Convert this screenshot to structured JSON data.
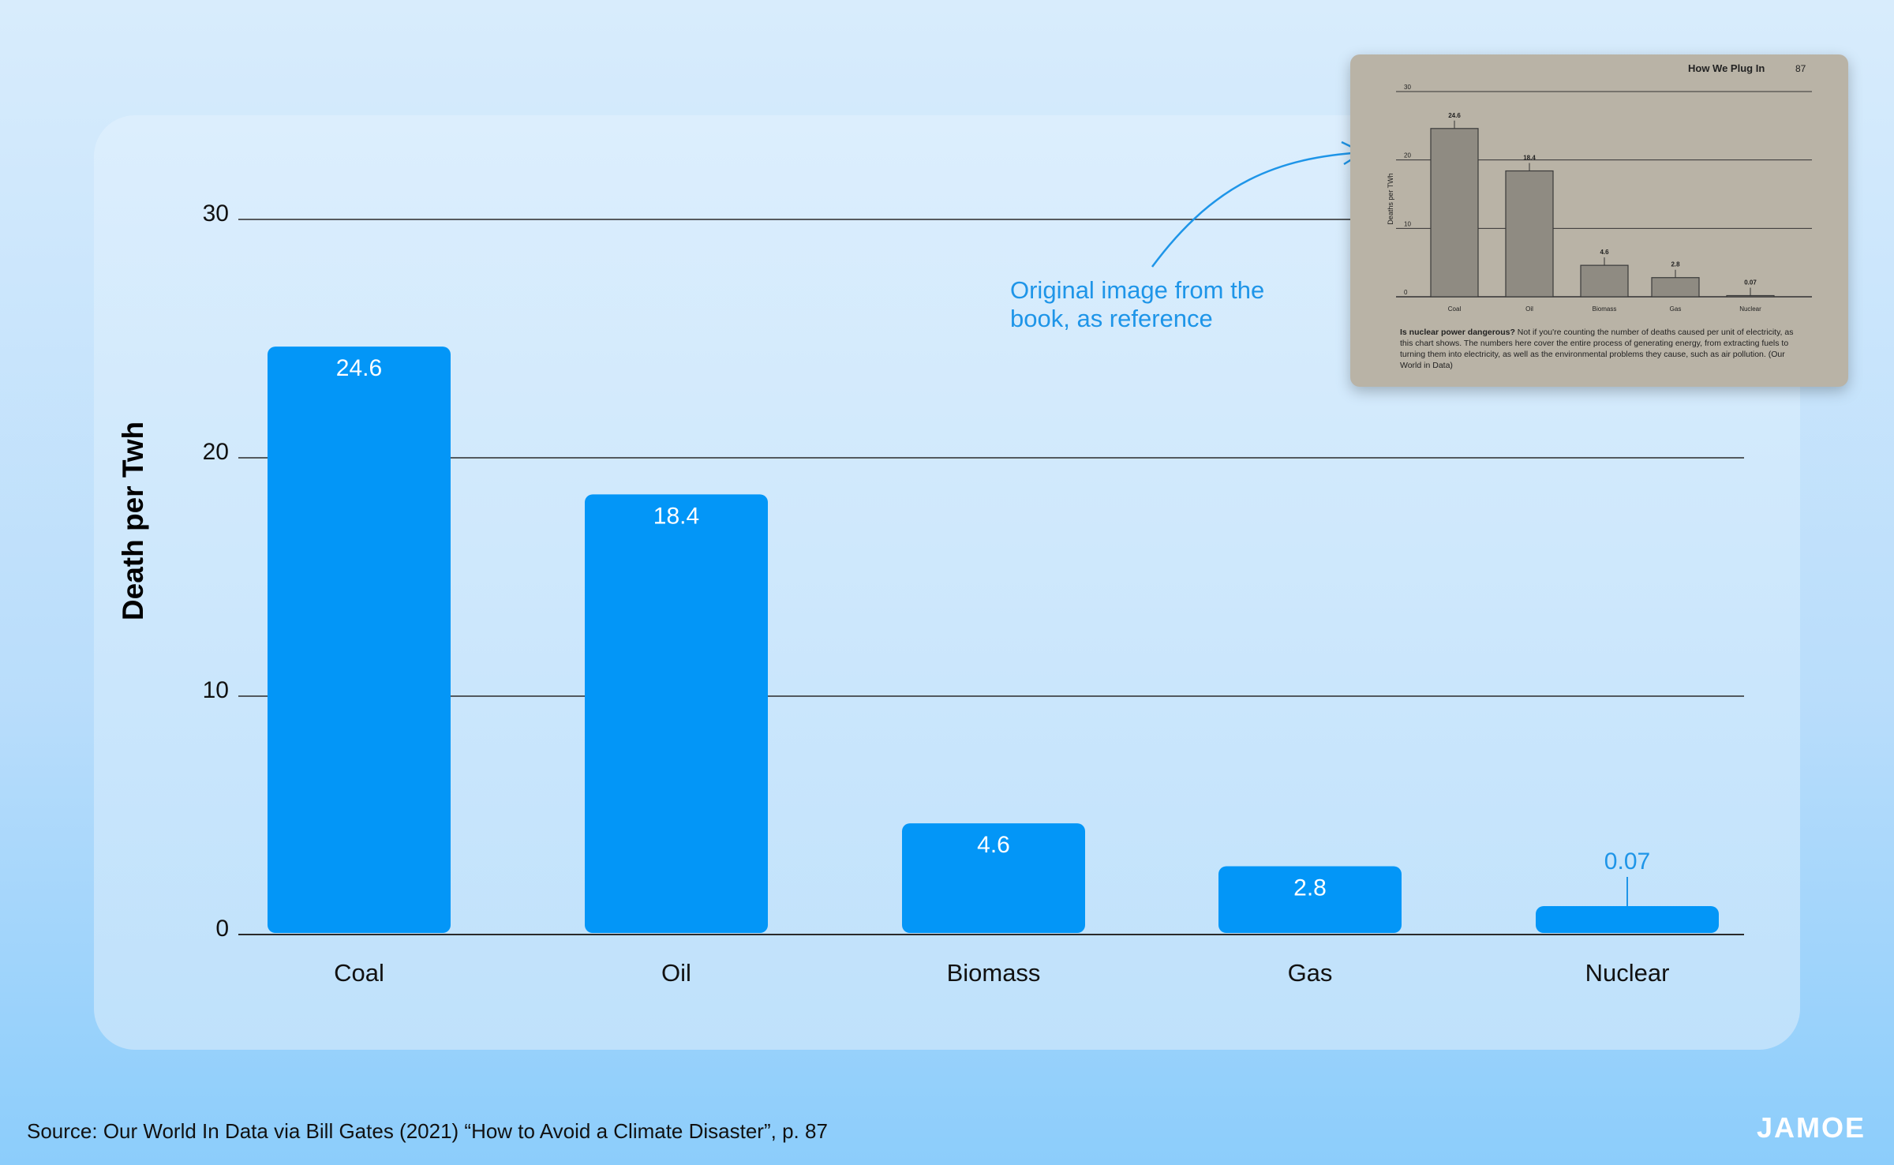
{
  "chart_data": {
    "type": "bar",
    "categories": [
      "Coal",
      "Oil",
      "Biomass",
      "Gas",
      "Nuclear"
    ],
    "values": [
      24.6,
      18.4,
      4.6,
      2.8,
      0.07
    ],
    "value_labels": [
      "24.6",
      "18.4",
      "4.6",
      "2.8",
      "0.07"
    ],
    "ylabel": "Death per Twh",
    "ylim": [
      0,
      30
    ],
    "yticks": [
      "0",
      "10",
      "20",
      "30"
    ],
    "grid": true,
    "bar_color": "#0396f7"
  },
  "annotation": {
    "line1": "Original image from the",
    "line2": "book, as reference",
    "color": "#1e95e8"
  },
  "book_image": {
    "header": "How We Plug In",
    "page": "87",
    "ylabel": "Deaths per TWh",
    "yticks": [
      "0",
      "10",
      "20",
      "30"
    ],
    "categories": [
      "Coal",
      "Oil",
      "Biomass",
      "Gas",
      "Nuclear"
    ],
    "value_labels": [
      "24.6",
      "18.4",
      "4.6",
      "2.8",
      "0.07"
    ],
    "caption_bold": "Is nuclear power dangerous?",
    "caption_rest": " Not if you're counting the number of deaths caused per unit of electricity, as this chart shows. The numbers here cover the entire process of generating energy, from extracting fuels to turning them into electricity, as well as the environmental problems they cause, such as air pollution. (Our World in Data)"
  },
  "footer": {
    "source": "Source: Our World In Data via Bill Gates (2021) “How to Avoid a Climate Disaster”, p. 87",
    "logo": "JAMOE"
  }
}
